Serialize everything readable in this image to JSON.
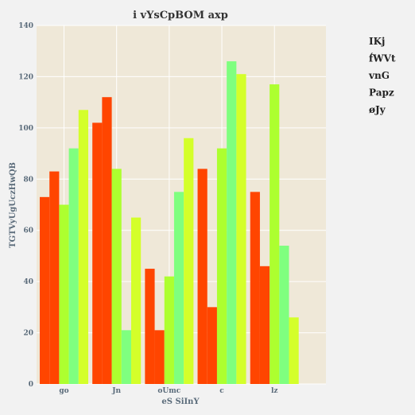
{
  "chart_data": {
    "type": "bar",
    "title": "i vYsCpBOM axp",
    "xlabel": "eS  SiInY",
    "ylabel": "TGTVyUgUczHwQB",
    "categories": [
      "go",
      "Jn",
      "oUmc",
      "c",
      "lz"
    ],
    "ylim": [
      0,
      140
    ],
    "yticks": [
      0,
      20,
      40,
      60,
      80,
      100,
      120,
      140
    ],
    "grid": true,
    "legend_position": "right",
    "series": [
      {
        "name": "IKj",
        "color": "#ff4500",
        "values": [
          73,
          102,
          45,
          84,
          75
        ]
      },
      {
        "name": "f́WVt",
        "color": "#ff4500",
        "values": [
          83,
          112,
          21,
          30,
          46
        ]
      },
      {
        "name": "vnG",
        "color": "#adff2f",
        "values": [
          70,
          84,
          42,
          92,
          117
        ]
      },
      {
        "name": "Papz",
        "color": "#7fff7f",
        "values": [
          92,
          21,
          75,
          126,
          54
        ]
      },
      {
        "name": "øJy",
        "color": "#d4ff2a",
        "values": [
          107,
          65,
          96,
          121,
          26
        ]
      }
    ],
    "plot_background": "#efe8d8"
  }
}
